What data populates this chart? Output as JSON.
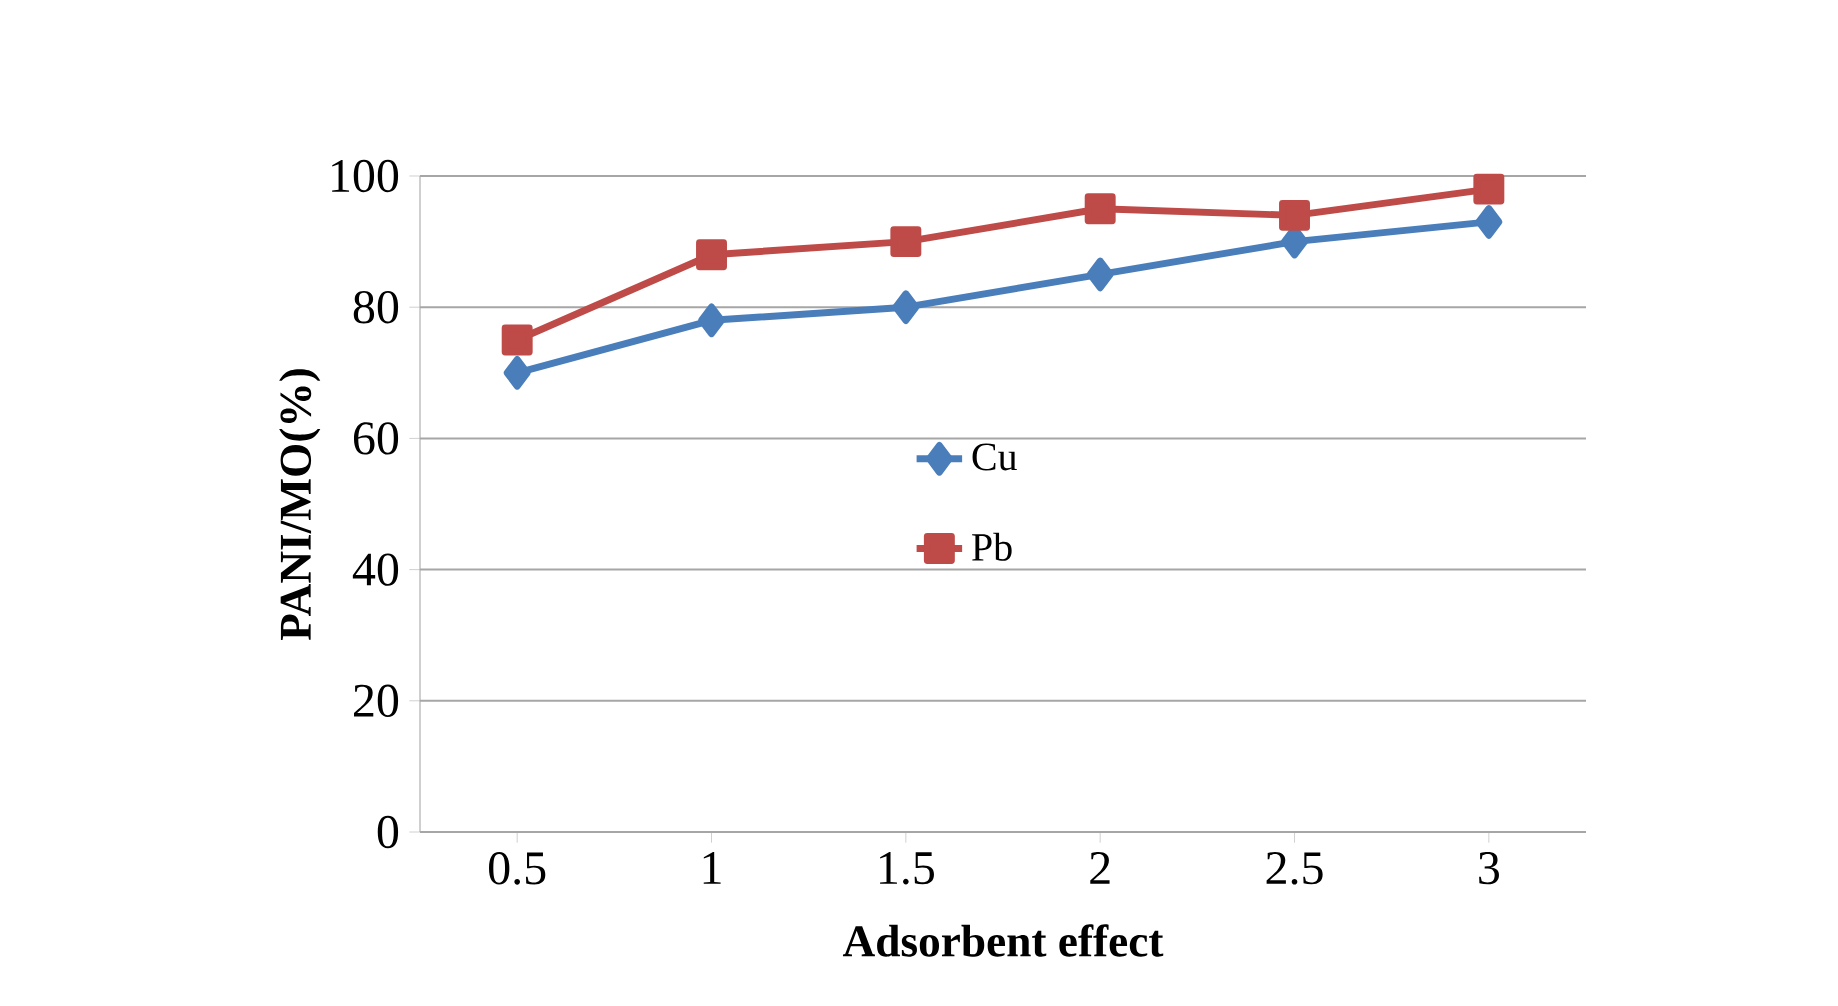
{
  "chart_data": {
    "type": "line",
    "xlabel": "Adsorbent effect",
    "ylabel": "PANI/MO(%)",
    "categories": [
      "0.5",
      "1",
      "1.5",
      "2",
      "2.5",
      "3"
    ],
    "series": [
      {
        "name": "Cu",
        "color": "#4a7ebb",
        "marker": "diamond",
        "values": [
          70,
          78,
          80,
          85,
          90,
          93
        ]
      },
      {
        "name": "Pb",
        "color": "#be4b48",
        "marker": "square",
        "values": [
          75,
          88,
          90,
          95,
          94,
          98
        ]
      }
    ],
    "ylim": [
      0,
      100
    ],
    "yticks": [
      0,
      20,
      40,
      60,
      80,
      100
    ],
    "grid": "y",
    "legend": "center",
    "line_style": "solid"
  }
}
